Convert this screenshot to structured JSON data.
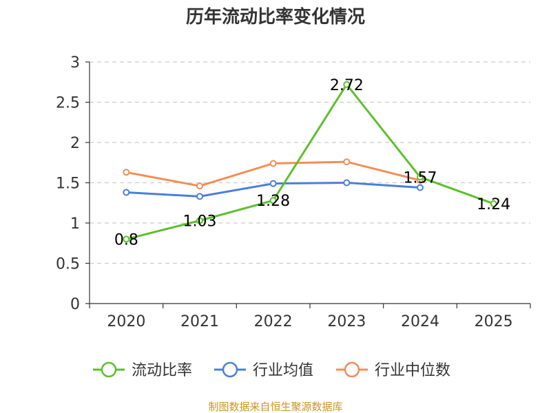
{
  "colors": {
    "current_ratio": "#5cc02c",
    "industry_avg": "#4a7fd8",
    "industry_median": "#f48c55",
    "grid": "#cccccc",
    "axis": "#333333",
    "source": "#c8961e"
  },
  "chart_data": {
    "type": "line",
    "title": "历年流动比率变化情况",
    "categories": [
      "2020",
      "2021",
      "2022",
      "2023",
      "2024",
      "2025"
    ],
    "ylim": [
      0,
      3
    ],
    "yticks": [
      "0",
      "0.5",
      "1",
      "1.5",
      "2",
      "2.5",
      "3"
    ],
    "ytick_values": [
      0,
      0.5,
      1,
      1.5,
      2,
      2.5,
      3
    ],
    "grid": true,
    "legend_position": "bottom",
    "series": [
      {
        "name": "流动比率",
        "color_key": "current_ratio",
        "values": [
          0.8,
          1.03,
          1.28,
          2.72,
          1.57,
          1.24
        ],
        "labels": [
          "0.8",
          "1.03",
          "1.28",
          "2.72",
          "1.57",
          "1.24"
        ]
      },
      {
        "name": "行业均值",
        "color_key": "industry_avg",
        "values": [
          1.38,
          1.33,
          1.49,
          1.5,
          1.44,
          null
        ],
        "labels": null
      },
      {
        "name": "行业中位数",
        "color_key": "industry_median",
        "values": [
          1.63,
          1.46,
          1.74,
          1.76,
          1.53,
          null
        ],
        "labels": null
      }
    ],
    "source": "制图数据来自恒生聚源数据库"
  }
}
